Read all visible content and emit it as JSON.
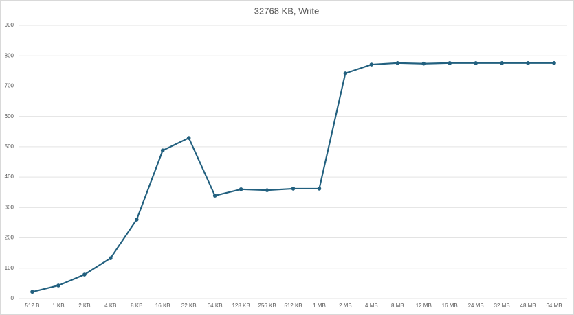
{
  "chart_data": {
    "type": "line",
    "title": "32768 KB, Write",
    "categories": [
      "512 B",
      "1 KB",
      "2 KB",
      "4 KB",
      "8 KB",
      "16 KB",
      "32 KB",
      "64 KB",
      "128 KB",
      "256 KB",
      "512 KB",
      "1 MB",
      "2 MB",
      "4 MB",
      "8 MB",
      "12 MB",
      "16 MB",
      "24 MB",
      "32 MB",
      "48 MB",
      "64 MB"
    ],
    "values": [
      22,
      43,
      79,
      133,
      260,
      488,
      529,
      339,
      360,
      357,
      362,
      362,
      742,
      771,
      776,
      774,
      776,
      776,
      776,
      776,
      776
    ],
    "color": "#22607f",
    "ylim": [
      0,
      900
    ],
    "yticks": [
      0,
      100,
      200,
      300,
      400,
      500,
      600,
      700,
      800,
      900
    ],
    "grid": true
  }
}
